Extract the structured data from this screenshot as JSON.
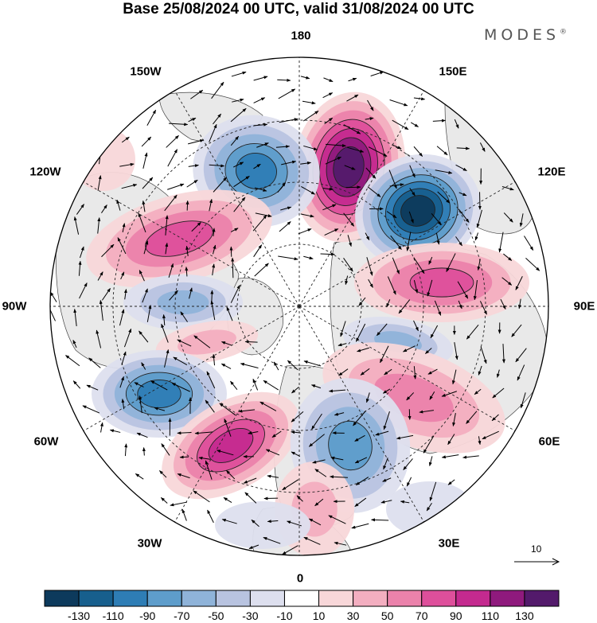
{
  "title": "Base 25/08/2024 00 UTC, valid 31/08/2024 00 UTC",
  "brand": "MODES",
  "brand_mark": "®",
  "longitude_labels": {
    "top": "180",
    "bottom": "0",
    "left": "90W",
    "right": "90E",
    "ul_outer": "150W",
    "ul_inner": "120W",
    "ur_outer": "150E",
    "ur_inner": "120E",
    "ll_inner": "60W",
    "ll_outer": "30W",
    "lr_inner": "60E",
    "lr_outer": "30E"
  },
  "reference_vector": "10",
  "colorbar": {
    "labels": [
      "-130",
      "-110",
      "-90",
      "-70",
      "-50",
      "-30",
      "-10",
      "10",
      "30",
      "50",
      "70",
      "90",
      "110",
      "130"
    ],
    "colors": [
      "#0d3a5c",
      "#175f8d",
      "#2e7db5",
      "#5e9dcb",
      "#8fb3d9",
      "#b8c3e0",
      "#dddfee",
      "#ffffff",
      "#f8d7d9",
      "#f3aec0",
      "#eb82ab",
      "#de4f9b",
      "#c42a8f",
      "#8f1a7d",
      "#531a6b"
    ]
  },
  "colors": {
    "land": "#e9e9e9",
    "background": "#ffffff"
  }
}
